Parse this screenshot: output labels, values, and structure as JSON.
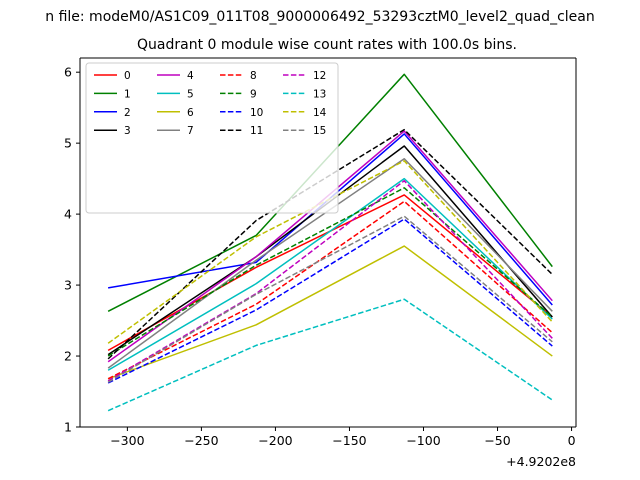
{
  "chart_data": {
    "type": "line",
    "supertitle": "n file: modeM0/AS1C09_011T08_9000006492_53293cztM0_level2_quad_clean",
    "title": "Quadrant 0 module wise count rates with 100.0s bins.",
    "xlabel": "",
    "ylabel": "",
    "offset_label": "+4.9202e8",
    "xlim": [
      -332,
      3
    ],
    "ylim": [
      1,
      6.2
    ],
    "xticks": [
      -300,
      -250,
      -200,
      -150,
      -100,
      -50,
      0
    ],
    "xtick_labels": [
      "−300",
      "−250",
      "−200",
      "−150",
      "−100",
      "−50",
      "0"
    ],
    "yticks": [
      1,
      2,
      3,
      4,
      5,
      6
    ],
    "ytick_labels": [
      "1",
      "2",
      "3",
      "4",
      "5",
      "6"
    ],
    "grid": false,
    "legend_position": "top-left",
    "x": [
      -313,
      -213,
      -113,
      -13
    ],
    "series": [
      {
        "name": "0",
        "color": "#ff0000",
        "dashed": false,
        "values": [
          2.08,
          3.25,
          4.27,
          2.55
        ]
      },
      {
        "name": "1",
        "color": "#008000",
        "dashed": false,
        "values": [
          2.63,
          3.7,
          5.97,
          3.26
        ]
      },
      {
        "name": "2",
        "color": "#0000ff",
        "dashed": false,
        "values": [
          2.96,
          3.32,
          5.13,
          2.72
        ]
      },
      {
        "name": "3",
        "color": "#000000",
        "dashed": false,
        "values": [
          2.02,
          3.4,
          4.96,
          2.55
        ]
      },
      {
        "name": "4",
        "color": "#bf00bf",
        "dashed": false,
        "values": [
          1.92,
          3.4,
          5.17,
          2.78
        ]
      },
      {
        "name": "5",
        "color": "#00bfbf",
        "dashed": false,
        "values": [
          1.8,
          3.02,
          4.5,
          2.52
        ]
      },
      {
        "name": "6",
        "color": "#bfbf00",
        "dashed": false,
        "values": [
          1.68,
          2.44,
          3.55,
          2.0
        ]
      },
      {
        "name": "7",
        "color": "#808080",
        "dashed": false,
        "values": [
          1.83,
          3.35,
          4.78,
          2.63
        ]
      },
      {
        "name": "8",
        "color": "#ff0000",
        "dashed": true,
        "values": [
          1.68,
          2.73,
          4.18,
          2.33
        ]
      },
      {
        "name": "9",
        "color": "#008000",
        "dashed": true,
        "values": [
          2.0,
          3.28,
          4.37,
          2.55
        ]
      },
      {
        "name": "10",
        "color": "#0000ff",
        "dashed": true,
        "values": [
          1.62,
          2.65,
          3.93,
          2.14
        ]
      },
      {
        "name": "11",
        "color": "#000000",
        "dashed": true,
        "values": [
          1.96,
          3.91,
          5.19,
          3.15
        ]
      },
      {
        "name": "12",
        "color": "#bf00bf",
        "dashed": true,
        "values": [
          1.65,
          2.88,
          4.47,
          2.25
        ]
      },
      {
        "name": "13",
        "color": "#00bfbf",
        "dashed": true,
        "values": [
          1.23,
          2.15,
          2.8,
          1.38
        ]
      },
      {
        "name": "14",
        "color": "#bfbf00",
        "dashed": true,
        "values": [
          2.18,
          3.68,
          4.75,
          2.48
        ]
      },
      {
        "name": "15",
        "color": "#808080",
        "dashed": true,
        "values": [
          1.63,
          2.87,
          3.97,
          2.2
        ]
      }
    ]
  }
}
